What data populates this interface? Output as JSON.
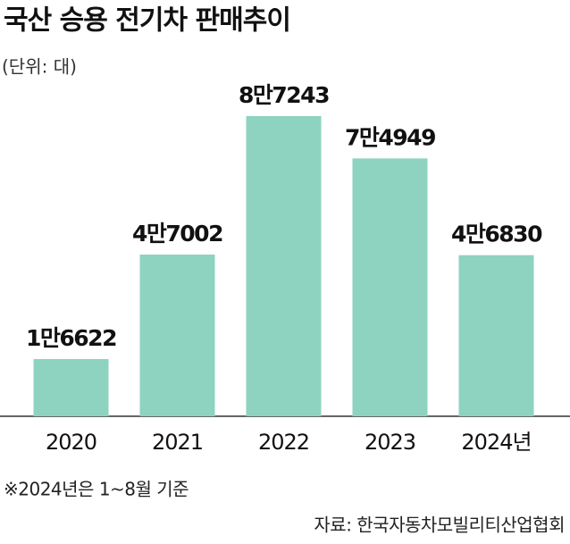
{
  "chart_data": {
    "type": "bar",
    "title": "국산 승용 전기차 판매추이",
    "subtitle": "(단위: 대)",
    "categories": [
      "2020",
      "2021",
      "2022",
      "2023",
      "2024년"
    ],
    "values": [
      16622,
      47002,
      87243,
      74949,
      46830
    ],
    "value_labels": [
      "1만6622",
      "4만7002",
      "8만7243",
      "7만4949",
      "4만6830"
    ],
    "color": "#8dd3c0",
    "note": "※2024년은 1~8월 기준",
    "source": "자료: 한국자동차모빌리티산업협회"
  }
}
